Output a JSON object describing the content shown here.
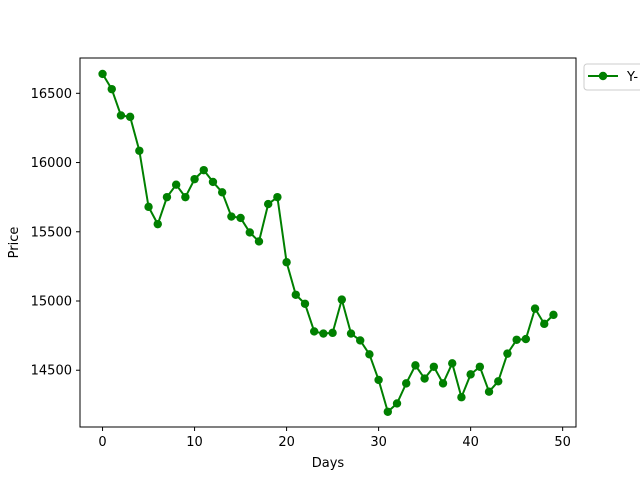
{
  "chart_data": {
    "type": "line",
    "title": "",
    "xlabel": "Days",
    "ylabel": "Price",
    "xlim": [
      -2.45,
      51.45
    ],
    "ylim": [
      14090,
      16755
    ],
    "xticks": [
      0,
      10,
      20,
      30,
      40,
      50
    ],
    "yticks": [
      14500,
      15000,
      15500,
      16000,
      16500
    ],
    "grid": false,
    "legend_position": "outside-top-right",
    "color": "#008000",
    "series": [
      {
        "name": "Y-",
        "x": [
          0,
          1,
          2,
          3,
          4,
          5,
          6,
          7,
          8,
          9,
          10,
          11,
          12,
          13,
          14,
          15,
          16,
          17,
          18,
          19,
          20,
          21,
          22,
          23,
          24,
          25,
          26,
          27,
          28,
          29,
          30,
          31,
          32,
          33,
          34,
          35,
          36,
          37,
          38,
          39,
          40,
          41,
          42,
          43,
          44,
          45,
          46,
          47,
          48,
          49
        ],
        "values": [
          16640,
          16530,
          16340,
          16330,
          16085,
          15680,
          15555,
          15750,
          15840,
          15750,
          15880,
          15945,
          15860,
          15785,
          15610,
          15600,
          15495,
          15430,
          15700,
          15750,
          15280,
          15045,
          14980,
          14780,
          14765,
          14770,
          15010,
          14765,
          14715,
          14615,
          14430,
          14200,
          14260,
          14405,
          14535,
          14440,
          14525,
          14405,
          14550,
          14305,
          14470,
          14525,
          14345,
          14420,
          14620,
          14720,
          14725,
          14945,
          14835,
          14900
        ]
      }
    ]
  }
}
